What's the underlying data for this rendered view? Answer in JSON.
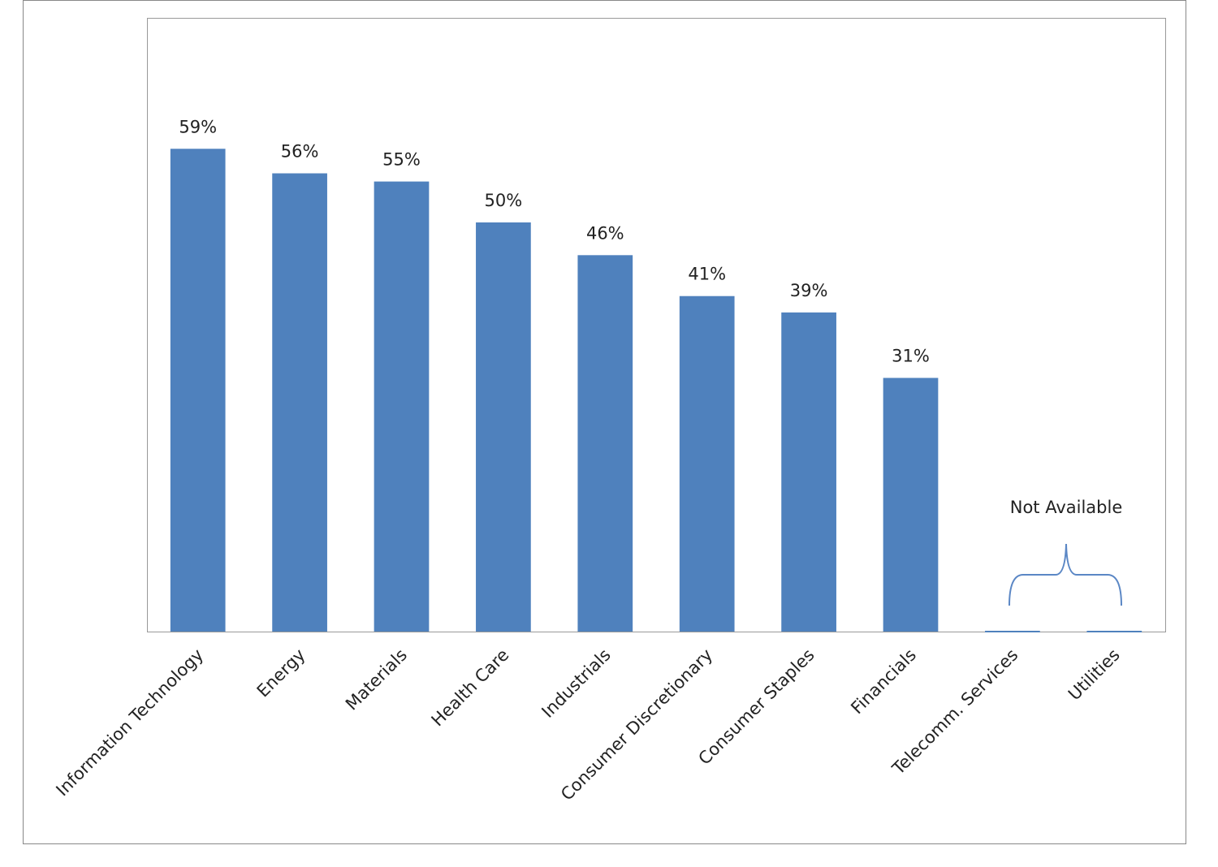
{
  "chart_data": {
    "type": "bar",
    "categories": [
      "Information Technology",
      "Energy",
      "Materials",
      "Health Care",
      "Industrials",
      "Consumer Discretionary",
      "Consumer Staples",
      "Financials",
      "Telecomm. Services",
      "Utilities"
    ],
    "values": [
      59,
      56,
      55,
      50,
      46,
      41,
      39,
      31,
      0,
      0
    ],
    "value_labels": [
      "59%",
      "56%",
      "55%",
      "50%",
      "46%",
      "41%",
      "39%",
      "31%",
      null,
      null
    ],
    "color": "#4f81bd",
    "ylim": [
      0,
      75
    ],
    "annotation": "Not Available"
  }
}
